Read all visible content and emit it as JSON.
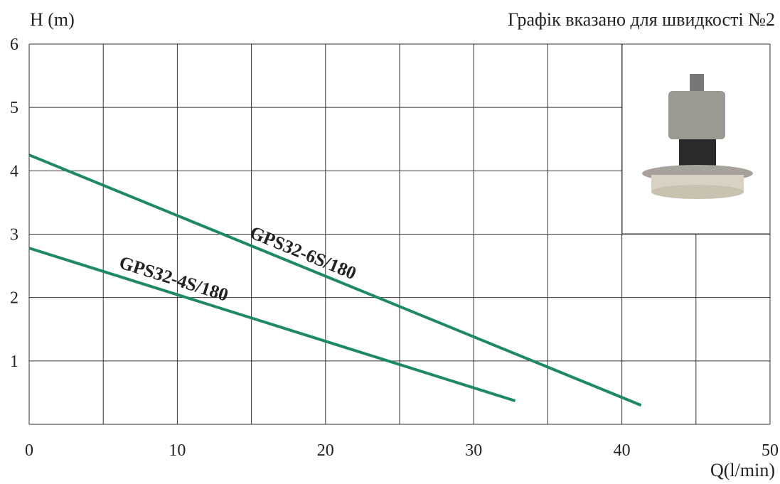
{
  "chart_data": {
    "type": "line",
    "title": "Графік вказано для швидкості №2",
    "y_label": "H (m)",
    "x_label": "Q(l/min)",
    "xlim": [
      0,
      50
    ],
    "xticks": [
      0,
      10,
      20,
      30,
      40,
      50
    ],
    "ylim": [
      0,
      6
    ],
    "yticks": [
      1,
      2,
      3,
      4,
      5,
      6
    ],
    "grid": true,
    "series": [
      {
        "name": "GPS32-6S/180",
        "color": "#1f8a62",
        "x": [
          0,
          41.3
        ],
        "values": [
          4.25,
          0.3
        ]
      },
      {
        "name": "GPS32-4S/180",
        "color": "#1f8a62",
        "x": [
          0,
          32.8
        ],
        "values": [
          2.78,
          0.37
        ]
      }
    ]
  }
}
